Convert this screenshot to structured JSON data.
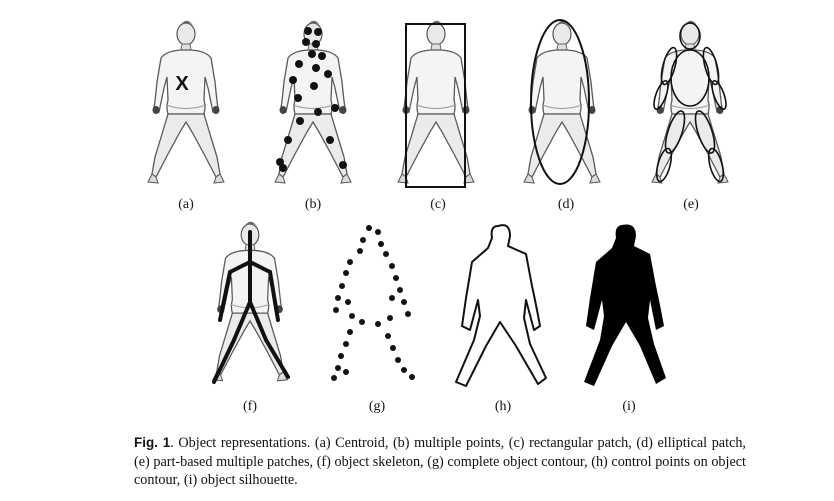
{
  "figure": {
    "panels": [
      {
        "id": "a",
        "label": "(a)",
        "representation": "Centroid"
      },
      {
        "id": "b",
        "label": "(b)",
        "representation": "multiple points"
      },
      {
        "id": "c",
        "label": "(c)",
        "representation": "rectangular patch"
      },
      {
        "id": "d",
        "label": "(d)",
        "representation": "elliptical patch"
      },
      {
        "id": "e",
        "label": "(e)",
        "representation": "part-based multiple patches"
      },
      {
        "id": "f",
        "label": "(f)",
        "representation": "object skeleton"
      },
      {
        "id": "g",
        "label": "(g)",
        "representation": "complete object contour"
      },
      {
        "id": "h",
        "label": "(h)",
        "representation": "control points on object contour"
      },
      {
        "id": "i",
        "label": "(i)",
        "representation": "object silhouette"
      }
    ],
    "centroid_marker": "X"
  },
  "caption": {
    "lead": "Fig. 1",
    "text": ". Object representations. (a) Centroid, (b) multiple points, (c) rectangular patch, (d) elliptical patch, (e) part-based multiple patches, (f) object skeleton, (g) complete object contour, (h) control points on object contour, (i) object silhouette."
  },
  "colors": {
    "ink": "#111111",
    "figure_fill": "#f1f1f1",
    "figure_stroke": "#5a5a5a",
    "silhouette": "#000000"
  }
}
